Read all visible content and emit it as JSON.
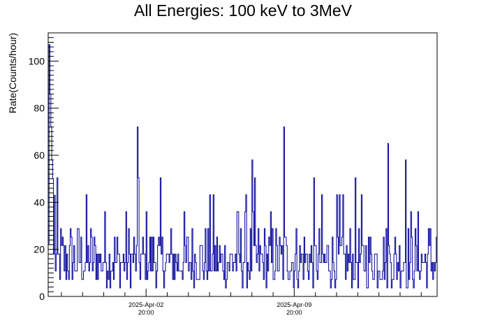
{
  "chart_data": {
    "type": "bar",
    "title": "All Energies:  100 keV to 3MeV",
    "xlabel": "",
    "ylabel": "Rate(Counts/hour)",
    "ylim": [
      0,
      112
    ],
    "yticks": [
      0,
      20,
      40,
      60,
      80,
      100
    ],
    "xtick_labels": [
      {
        "date": "2025-Apr-02",
        "time": "20:00"
      },
      {
        "date": "2025-Apr-09",
        "time": "20:00"
      }
    ],
    "xlim": [
      "2025-Mar-29 05:00",
      "2025-Apr-16 14:00"
    ],
    "grid": false,
    "color": "#000099",
    "bin_width_hours": 1,
    "baseline_level_value": 14,
    "peaks": [
      {
        "time": "2025-Mar-29 05:00",
        "value": 22
      },
      {
        "time": "2025-Mar-29 06:00",
        "value": 107
      },
      {
        "time": "2025-Mar-29 07:00",
        "value": 86
      },
      {
        "time": "2025-Mar-29 08:00",
        "value": 72
      },
      {
        "time": "2025-Mar-29 09:00",
        "value": 58
      },
      {
        "time": "2025-Mar-29 10:00",
        "value": 50
      },
      {
        "time": "2025-Mar-29 12:00",
        "value": 43
      },
      {
        "time": "2025-Apr-02 10:00",
        "value": 72
      },
      {
        "time": "2025-Apr-09 08:00",
        "value": 72
      },
      {
        "time": "2025-Apr-14 06:00",
        "value": 65
      },
      {
        "time": "2025-Apr-07 20:00",
        "value": 58
      },
      {
        "time": "2025-Apr-15 02:00",
        "value": 58
      }
    ]
  }
}
